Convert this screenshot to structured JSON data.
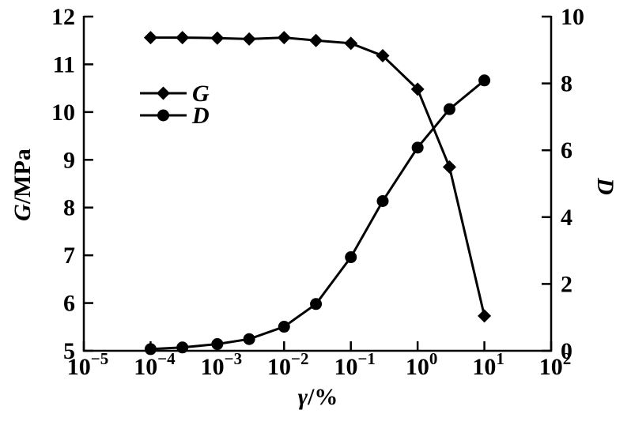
{
  "colors": {
    "foreground": "#000000",
    "background": "#ffffff"
  },
  "chart_data": {
    "type": "line",
    "title": "",
    "xlabel": {
      "italic": "γ",
      "rest": "/%"
    },
    "x_scale": "log",
    "x_range": [
      1e-05,
      100
    ],
    "x_tick_exponents": [
      -5,
      -4,
      -3,
      -2,
      -1,
      0,
      1,
      2
    ],
    "y_left": {
      "label": {
        "italic": "G",
        "rest": "/MPa"
      },
      "range": [
        5,
        12
      ],
      "ticks": [
        5,
        6,
        7,
        8,
        9,
        10,
        11,
        12
      ]
    },
    "y_right": {
      "label": {
        "italic": "D",
        "rest": ""
      },
      "range": [
        0,
        10
      ],
      "ticks": [
        0,
        2,
        4,
        6,
        8,
        10
      ]
    },
    "x": [
      0.0001,
      0.0003,
      0.001,
      0.003,
      0.01,
      0.03,
      0.1,
      0.3,
      1,
      3,
      10
    ],
    "series": [
      {
        "name": "G",
        "axis": "left",
        "marker": "diamond",
        "values": [
          11.56,
          11.56,
          11.55,
          11.53,
          11.56,
          11.5,
          11.44,
          11.18,
          10.48,
          8.85,
          5.73
        ]
      },
      {
        "name": "D",
        "axis": "right",
        "marker": "circle",
        "values": [
          0.05,
          0.1,
          0.2,
          0.35,
          0.72,
          1.4,
          2.8,
          4.48,
          6.08,
          7.23,
          8.09
        ]
      }
    ],
    "legend": {
      "position": "inside-upper-left",
      "entries": [
        {
          "label": "G",
          "marker": "diamond"
        },
        {
          "label": "D",
          "marker": "circle"
        }
      ]
    },
    "grid": false
  }
}
